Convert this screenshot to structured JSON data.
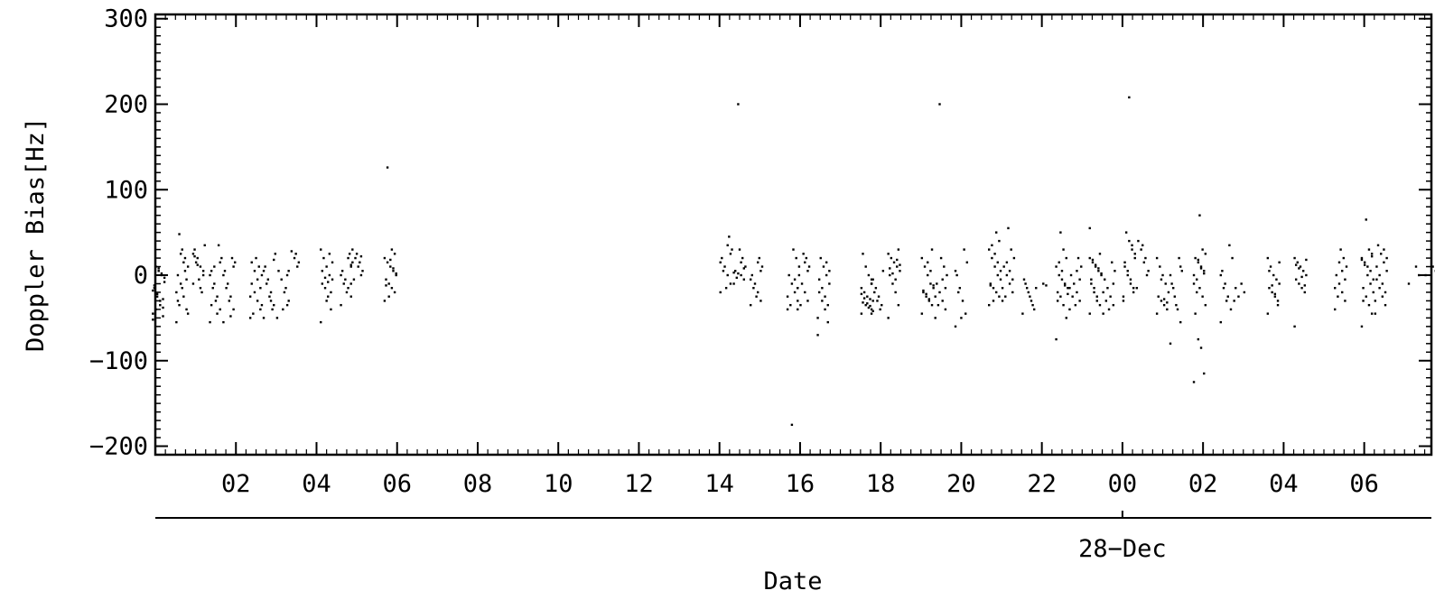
{
  "chart_data": {
    "type": "scatter",
    "title": "",
    "xlabel": "Date",
    "ylabel": "Doppler Bias[Hz]",
    "xlim": [
      "2023-12-27 00:00",
      "2023-12-28 07:40"
    ],
    "ylim": [
      -210,
      305
    ],
    "yticks": [
      300,
      200,
      100,
      0,
      -100,
      -200
    ],
    "ytick_labels": [
      "300",
      "200",
      "100",
      "0",
      "−100",
      "−200"
    ],
    "xticks": [
      {
        "t": "2023-12-27 02:00",
        "label": "02"
      },
      {
        "t": "2023-12-27 04:00",
        "label": "04"
      },
      {
        "t": "2023-12-27 06:00",
        "label": "06"
      },
      {
        "t": "2023-12-27 08:00",
        "label": "08"
      },
      {
        "t": "2023-12-27 10:00",
        "label": "10"
      },
      {
        "t": "2023-12-27 12:00",
        "label": "12"
      },
      {
        "t": "2023-12-27 14:00",
        "label": "14"
      },
      {
        "t": "2023-12-27 16:00",
        "label": "16"
      },
      {
        "t": "2023-12-27 18:00",
        "label": "18"
      },
      {
        "t": "2023-12-27 20:00",
        "label": "20"
      },
      {
        "t": "2023-12-27 22:00",
        "label": "22"
      },
      {
        "t": "2023-12-28 00:00",
        "label": "00"
      },
      {
        "t": "2023-12-28 02:00",
        "label": "02"
      },
      {
        "t": "2023-12-28 04:00",
        "label": "04"
      },
      {
        "t": "2023-12-28 06:00",
        "label": "06"
      }
    ],
    "date_label": {
      "t": "2023-12-28 00:00",
      "label": "28−Dec"
    },
    "grid": false,
    "legend": "none",
    "marker_color": "#000000",
    "clusters": [
      {
        "x": "2023-12-27 00:05",
        "y": [
          -45,
          -38,
          -30,
          -22,
          -15,
          -8,
          0,
          5,
          10,
          -52,
          -48,
          -35,
          -25,
          -12,
          -3,
          2,
          8,
          -40,
          -18,
          -28
        ]
      },
      {
        "x": "2023-12-27 00:40",
        "y": [
          -55,
          -40,
          -25,
          -10,
          0,
          10,
          20,
          30,
          48,
          -20,
          -5,
          15,
          25,
          -30,
          -45,
          5,
          -15,
          -35
        ]
      },
      {
        "x": "2023-12-27 01:05",
        "y": [
          -10,
          0,
          10,
          20,
          30,
          35,
          -20,
          -5,
          15,
          25,
          5,
          -15,
          12,
          22
        ]
      },
      {
        "x": "2023-12-27 01:30",
        "y": [
          -55,
          -40,
          -25,
          -10,
          5,
          20,
          35,
          -30,
          -15,
          0,
          15,
          -45,
          10,
          -35
        ]
      },
      {
        "x": "2023-12-27 01:50",
        "y": [
          -55,
          -40,
          -25,
          -10,
          5,
          15,
          20,
          -30,
          -15,
          0,
          10,
          -48
        ]
      },
      {
        "x": "2023-12-27 02:30",
        "y": [
          -50,
          -40,
          -30,
          -20,
          -10,
          0,
          10,
          20,
          -45,
          -25,
          -15,
          -5,
          5,
          15,
          -35
        ]
      },
      {
        "x": "2023-12-27 02:50",
        "y": [
          -50,
          -35,
          -20,
          -5,
          10,
          25,
          -40,
          -25,
          -10,
          5,
          18,
          -30
        ]
      },
      {
        "x": "2023-12-27 03:10",
        "y": [
          -50,
          -35,
          -20,
          -5,
          5,
          -30,
          -15,
          -40
        ]
      },
      {
        "x": "2023-12-27 03:25",
        "y": [
          0,
          10,
          20,
          28,
          5,
          15,
          25
        ]
      },
      {
        "x": "2023-12-27 04:15",
        "y": [
          -55,
          -40,
          -25,
          -15,
          -10,
          -5,
          0,
          10,
          20,
          30,
          -20,
          -8,
          -3,
          5,
          15,
          25,
          -30
        ]
      },
      {
        "x": "2023-12-27 04:45",
        "y": [
          -35,
          -25,
          -15,
          -5,
          5,
          15,
          25,
          -20,
          -10,
          0,
          10,
          20
        ]
      },
      {
        "x": "2023-12-27 05:00",
        "y": [
          -10,
          0,
          10,
          20,
          30,
          5,
          15,
          25,
          -5,
          12,
          22
        ]
      },
      {
        "x": "2023-12-27 05:50",
        "y": [
          -30,
          -20,
          -15,
          -10,
          -5,
          0,
          5,
          10,
          15,
          20,
          25,
          30,
          -25,
          -12,
          2,
          8,
          18,
          126
        ]
      },
      {
        "x": "2023-12-27 14:10",
        "y": [
          -20,
          -10,
          0,
          10,
          20,
          30,
          45,
          -15,
          5,
          15,
          25,
          35
        ]
      },
      {
        "x": "2023-12-27 14:30",
        "y": [
          -10,
          -5,
          0,
          2,
          5,
          10,
          20,
          30,
          -3,
          3,
          8,
          15,
          200
        ]
      },
      {
        "x": "2023-12-27 14:55",
        "y": [
          -35,
          -30,
          -20,
          -10,
          0,
          10,
          20,
          -25,
          -15,
          -5,
          5,
          15
        ]
      },
      {
        "x": "2023-12-27 15:50",
        "y": [
          -40,
          -30,
          -20,
          -10,
          0,
          10,
          20,
          30,
          -35,
          -25,
          -15,
          -5,
          -175
        ]
      },
      {
        "x": "2023-12-27 16:05",
        "y": [
          -40,
          -30,
          -20,
          -10,
          0,
          10,
          20,
          25,
          -35,
          -15,
          5,
          15
        ]
      },
      {
        "x": "2023-12-27 16:35",
        "y": [
          -70,
          -55,
          -40,
          -30,
          -20,
          -10,
          0,
          10,
          20,
          -50,
          -35,
          -25,
          -15,
          -5,
          5,
          15
        ]
      },
      {
        "x": "2023-12-27 17:40",
        "y": [
          -45,
          -40,
          -38,
          -35,
          -32,
          -30,
          -28,
          -25,
          -20,
          -15,
          -10,
          0,
          10,
          25,
          -42,
          -36,
          -33,
          -27,
          -22,
          -5
        ]
      },
      {
        "x": "2023-12-27 17:55",
        "y": [
          -45,
          -35,
          -25,
          -15,
          -5,
          5,
          -40,
          -30,
          -20,
          -10
        ]
      },
      {
        "x": "2023-12-27 18:20",
        "y": [
          -50,
          -35,
          -20,
          -10,
          0,
          5,
          10,
          15,
          20,
          25,
          30,
          -5,
          2,
          8,
          12,
          18
        ]
      },
      {
        "x": "2023-12-27 19:10",
        "y": [
          -45,
          -35,
          -30,
          -25,
          -20,
          -15,
          -10,
          0,
          10,
          20,
          30,
          -28,
          -22,
          -18,
          -12,
          5,
          15
        ]
      },
      {
        "x": "2023-12-27 19:30",
        "y": [
          -50,
          -40,
          -30,
          -20,
          -10,
          0,
          10,
          20,
          -35,
          -25,
          -15,
          -5,
          200
        ]
      },
      {
        "x": "2023-12-27 20:00",
        "y": [
          -60,
          -45,
          -30,
          -15,
          0,
          15,
          30,
          -50,
          -20,
          5
        ]
      },
      {
        "x": "2023-12-27 20:50",
        "y": [
          -35,
          -25,
          -20,
          -15,
          -10,
          -5,
          0,
          10,
          20,
          30,
          40,
          50,
          -30,
          -12,
          5,
          15,
          25,
          35
        ]
      },
      {
        "x": "2023-12-27 21:10",
        "y": [
          -30,
          -20,
          -10,
          0,
          10,
          20,
          30,
          55,
          -25,
          -15,
          -5,
          5,
          15
        ]
      },
      {
        "x": "2023-12-27 21:40",
        "y": [
          -45,
          -35,
          -25,
          -15,
          -5,
          -40,
          -30,
          -20,
          -10
        ]
      },
      {
        "x": "2023-12-27 22:00",
        "y": [
          -15,
          -12,
          -10
        ]
      },
      {
        "x": "2023-12-27 22:30",
        "y": [
          -75,
          -50,
          -35,
          -25,
          -20,
          -15,
          -10,
          -5,
          0,
          10,
          20,
          30,
          50,
          -30,
          -22,
          -12,
          5,
          15
        ]
      },
      {
        "x": "2023-12-27 22:50",
        "y": [
          -40,
          -30,
          -20,
          -10,
          0,
          10,
          20,
          -35,
          -25,
          -15,
          -5,
          5
        ]
      },
      {
        "x": "2023-12-27 23:20",
        "y": [
          -45,
          -35,
          -25,
          -15,
          -5,
          0,
          5,
          10,
          15,
          20,
          25,
          -30,
          -20,
          -10,
          2,
          8,
          12,
          18,
          55
        ]
      },
      {
        "x": "2023-12-27 23:40",
        "y": [
          -45,
          -35,
          -25,
          -15,
          -5,
          5,
          15,
          -40,
          -30,
          -20,
          -10
        ]
      },
      {
        "x": "2023-12-28 00:10",
        "y": [
          -30,
          -20,
          -10,
          0,
          10,
          20,
          30,
          40,
          50,
          -25,
          -15,
          -5,
          5,
          15,
          25,
          35,
          208
        ]
      },
      {
        "x": "2023-12-28 00:30",
        "y": [
          -15,
          0,
          15,
          30,
          40,
          5,
          20,
          35
        ]
      },
      {
        "x": "2023-12-28 01:00",
        "y": [
          -45,
          -40,
          -35,
          -30,
          -25,
          -20,
          -10,
          0,
          10,
          20,
          -32,
          -28,
          -5
        ]
      },
      {
        "x": "2023-12-28 01:20",
        "y": [
          -80,
          -55,
          -40,
          -25,
          -10,
          5,
          20,
          -35,
          -15,
          0,
          10
        ]
      },
      {
        "x": "2023-12-28 01:55",
        "y": [
          -125,
          -115,
          -85,
          -75,
          -45,
          -35,
          -25,
          -15,
          -5,
          0,
          5,
          10,
          15,
          20,
          25,
          30,
          70,
          -20,
          -10,
          2,
          8,
          18
        ]
      },
      {
        "x": "2023-12-28 02:35",
        "y": [
          -55,
          -40,
          -25,
          -10,
          5,
          20,
          35,
          -30,
          -15,
          0
        ]
      },
      {
        "x": "2023-12-28 02:55",
        "y": [
          -30,
          -20,
          -10,
          -25,
          -15
        ]
      },
      {
        "x": "2023-12-28 03:45",
        "y": [
          -45,
          -35,
          -25,
          -20,
          -15,
          -10,
          -5,
          0,
          10,
          20,
          -30,
          -22,
          -12,
          5,
          15
        ]
      },
      {
        "x": "2023-12-28 04:25",
        "y": [
          -60,
          -20,
          -15,
          -10,
          -5,
          0,
          5,
          10,
          15,
          20,
          -12,
          -2,
          8,
          12,
          18
        ]
      },
      {
        "x": "2023-12-28 05:25",
        "y": [
          -40,
          -30,
          -20,
          -10,
          0,
          10,
          20,
          30,
          -25,
          -15,
          -5,
          5,
          15
        ]
      },
      {
        "x": "2023-12-28 06:05",
        "y": [
          -60,
          -45,
          -35,
          -25,
          -15,
          -5,
          5,
          10,
          15,
          20,
          25,
          30,
          65,
          -30,
          -20,
          -10,
          0,
          12,
          18,
          22
        ]
      },
      {
        "x": "2023-12-28 06:25",
        "y": [
          -45,
          -35,
          -25,
          -15,
          -5,
          5,
          15,
          25,
          35,
          -30,
          -20,
          -10,
          0,
          10,
          20,
          30
        ]
      },
      {
        "x": "2023-12-28 07:15",
        "y": [
          -10,
          0,
          10
        ]
      },
      {
        "x": "2023-12-28 07:40",
        "y": [
          0,
          5,
          10
        ]
      }
    ]
  }
}
